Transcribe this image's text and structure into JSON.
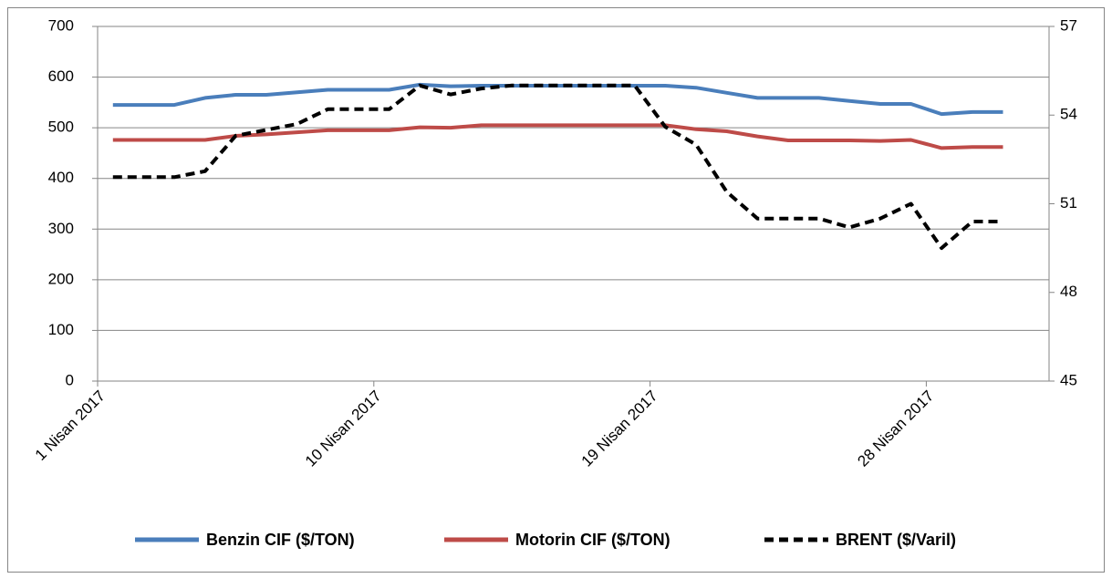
{
  "chart_data": {
    "type": "line",
    "categories": [
      "1 Nisan 2017",
      null,
      null,
      null,
      null,
      null,
      null,
      null,
      null,
      "10 Nisan 2017",
      null,
      null,
      null,
      null,
      null,
      null,
      null,
      null,
      "19 Nisan 2017",
      null,
      null,
      null,
      null,
      null,
      null,
      null,
      null,
      "28 Nisan 2017",
      null,
      null
    ],
    "series": [
      {
        "name": "Benzin CIF ($/TON)",
        "color": "#4a7ebb",
        "axis": "y",
        "values": [
          545,
          545,
          545,
          559,
          565,
          565,
          570,
          575,
          575,
          575,
          585,
          582,
          583,
          583,
          583,
          583,
          583,
          583,
          583,
          579,
          569,
          559,
          559,
          559,
          553,
          547,
          547,
          527,
          531,
          531
        ]
      },
      {
        "name": "Motorin CIF ($/TON)",
        "color": "#be4b48",
        "axis": "y",
        "values": [
          476,
          476,
          476,
          476,
          484,
          487,
          491,
          495,
          495,
          495,
          501,
          500,
          505,
          505,
          505,
          505,
          505,
          505,
          505,
          497,
          493,
          483,
          475,
          475,
          475,
          474,
          476,
          460,
          462,
          462
        ]
      },
      {
        "name": "BRENT ($/Varil)",
        "color": "#000000",
        "axis": "y2",
        "dashed": true,
        "values": [
          51.9,
          51.9,
          51.9,
          52.1,
          53.3,
          53.5,
          53.7,
          54.2,
          54.2,
          54.2,
          55.0,
          54.7,
          54.9,
          55.0,
          55.0,
          55.0,
          55.0,
          55.0,
          53.6,
          53.0,
          51.4,
          50.5,
          50.5,
          50.5,
          50.2,
          50.5,
          51.0,
          49.5,
          50.4,
          50.4
        ]
      }
    ],
    "ylim": [
      0,
      700
    ],
    "yticks": [
      0,
      100,
      200,
      300,
      400,
      500,
      600,
      700
    ],
    "y2lim": [
      45,
      57
    ],
    "y2ticks": [
      45,
      48,
      51,
      54,
      57
    ],
    "grid": true,
    "legend": "bottom"
  }
}
